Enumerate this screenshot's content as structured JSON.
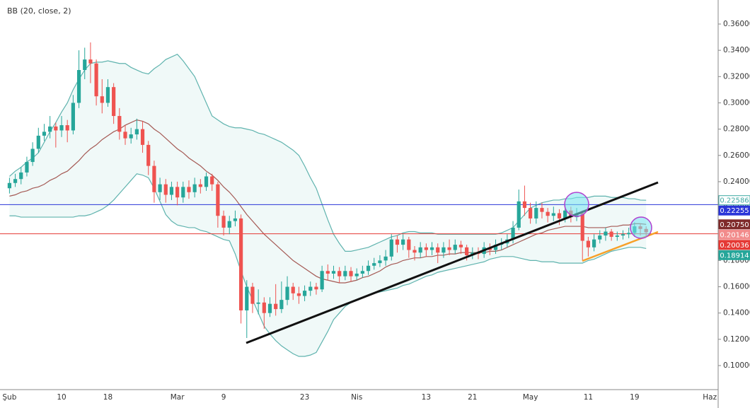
{
  "chart_data": {
    "type": "candlestick",
    "title": "BB (20, close, 2)",
    "categories": [
      "Şub",
      null,
      null,
      null,
      null,
      null,
      null,
      null,
      null,
      "10",
      null,
      null,
      null,
      null,
      null,
      null,
      null,
      "18",
      null,
      null,
      null,
      null,
      null,
      null,
      null,
      null,
      null,
      null,
      null,
      "Mar",
      null,
      null,
      null,
      null,
      null,
      null,
      null,
      "9",
      null,
      null,
      null,
      null,
      null,
      null,
      null,
      null,
      null,
      null,
      null,
      null,
      null,
      "23",
      null,
      null,
      null,
      null,
      null,
      null,
      null,
      null,
      "Nis",
      null,
      null,
      null,
      null,
      null,
      null,
      null,
      null,
      null,
      null,
      null,
      "13",
      null,
      null,
      null,
      null,
      null,
      null,
      null,
      "21",
      null,
      null,
      null,
      null,
      null,
      null,
      null,
      null,
      null,
      "May",
      null,
      null,
      null,
      null,
      null,
      null,
      null,
      null,
      null,
      "11",
      null,
      null,
      null,
      null,
      null,
      null,
      null,
      "19",
      null,
      null,
      null,
      null,
      null,
      null,
      null,
      null,
      null,
      null,
      null,
      null,
      "Haz",
      null
    ],
    "open": [
      0.235,
      0.239,
      0.242,
      0.247,
      0.255,
      0.265,
      0.275,
      0.278,
      0.282,
      0.279,
      0.283,
      0.279,
      0.3,
      0.325,
      0.333,
      0.33,
      0.305,
      0.3,
      0.312,
      0.29,
      0.278,
      0.273,
      0.276,
      0.28,
      0.268,
      0.252,
      0.232,
      0.238,
      0.23,
      0.236,
      0.228,
      0.236,
      0.232,
      0.238,
      0.236,
      0.244,
      0.238,
      0.214,
      0.205,
      0.21,
      0.212,
      0.142,
      0.16,
      0.147,
      0.148,
      0.14,
      0.147,
      0.143,
      0.15,
      0.16,
      0.155,
      0.153,
      0.157,
      0.16,
      0.158,
      0.172,
      0.17,
      0.172,
      0.168,
      0.172,
      0.168,
      0.17,
      0.172,
      0.176,
      0.178,
      0.18,
      0.183,
      0.196,
      0.192,
      0.196,
      0.188,
      0.186,
      0.19,
      0.188,
      0.19,
      0.186,
      0.19,
      0.188,
      0.192,
      0.19,
      0.184,
      0.186,
      0.185,
      0.19,
      0.188,
      0.192,
      0.193,
      0.196,
      0.205,
      0.225,
      0.22,
      0.212,
      0.22,
      0.217,
      0.214,
      0.216,
      0.212,
      0.218,
      0.213,
      0.216,
      0.195,
      0.19,
      0.196,
      0.199,
      0.202,
      0.198,
      0.199,
      0.2,
      0.201,
      0.206,
      0.204,
      null,
      null,
      null,
      null,
      null,
      null,
      null,
      null,
      null,
      null,
      null,
      null
    ],
    "high": [
      0.243,
      0.246,
      0.251,
      0.259,
      0.27,
      0.281,
      0.284,
      0.29,
      0.285,
      0.29,
      0.287,
      0.306,
      0.34,
      0.342,
      0.346,
      0.333,
      0.318,
      0.318,
      0.315,
      0.296,
      0.283,
      0.281,
      0.288,
      0.286,
      0.271,
      0.256,
      0.243,
      0.242,
      0.24,
      0.24,
      0.24,
      0.241,
      0.243,
      0.242,
      0.247,
      0.246,
      0.24,
      0.218,
      0.214,
      0.218,
      0.215,
      0.165,
      0.163,
      0.158,
      0.152,
      0.152,
      0.162,
      0.164,
      0.168,
      0.163,
      0.16,
      0.161,
      0.164,
      0.163,
      0.176,
      0.177,
      0.176,
      0.175,
      0.176,
      0.175,
      0.174,
      0.176,
      0.18,
      0.182,
      0.184,
      0.188,
      0.2,
      0.199,
      0.2,
      0.198,
      0.191,
      0.194,
      0.193,
      0.194,
      0.193,
      0.194,
      0.196,
      0.196,
      0.195,
      0.192,
      0.19,
      0.19,
      0.194,
      0.193,
      0.196,
      0.197,
      0.2,
      0.21,
      0.234,
      0.237,
      0.224,
      0.225,
      0.224,
      0.22,
      0.221,
      0.219,
      0.222,
      0.221,
      0.22,
      0.218,
      0.198,
      0.2,
      0.203,
      0.205,
      0.204,
      0.202,
      0.203,
      0.205,
      0.209,
      0.208,
      0.206,
      null,
      null,
      null,
      null,
      null,
      null,
      null,
      null,
      null,
      null,
      null,
      null
    ],
    "low": [
      0.231,
      0.236,
      0.238,
      0.244,
      0.252,
      0.262,
      0.271,
      0.273,
      0.266,
      0.274,
      0.27,
      0.276,
      0.296,
      0.318,
      0.315,
      0.298,
      0.292,
      0.297,
      0.284,
      0.272,
      0.268,
      0.269,
      0.272,
      0.262,
      0.245,
      0.224,
      0.226,
      0.224,
      0.226,
      0.222,
      0.224,
      0.227,
      0.228,
      0.231,
      0.233,
      0.233,
      0.205,
      0.199,
      0.2,
      0.206,
      0.132,
      0.121,
      0.14,
      0.139,
      0.128,
      0.137,
      0.138,
      0.14,
      0.146,
      0.15,
      0.147,
      0.149,
      0.153,
      0.154,
      0.156,
      0.165,
      0.166,
      0.163,
      0.165,
      0.164,
      0.165,
      0.167,
      0.169,
      0.173,
      0.175,
      0.176,
      0.18,
      0.186,
      0.188,
      0.182,
      0.18,
      0.182,
      0.183,
      0.184,
      0.178,
      0.182,
      0.184,
      0.185,
      0.185,
      0.18,
      0.181,
      0.181,
      0.182,
      0.184,
      0.185,
      0.188,
      0.19,
      0.193,
      0.203,
      0.214,
      0.208,
      0.208,
      0.212,
      0.209,
      0.21,
      0.207,
      0.209,
      0.209,
      0.21,
      0.18,
      0.183,
      0.187,
      0.193,
      0.195,
      0.195,
      0.195,
      0.196,
      0.197,
      0.198,
      0.199,
      0.199,
      null,
      null,
      null,
      null,
      null,
      null,
      null,
      null,
      null,
      null,
      null,
      null
    ],
    "close": [
      0.239,
      0.242,
      0.247,
      0.255,
      0.265,
      0.275,
      0.278,
      0.282,
      0.279,
      0.283,
      0.279,
      0.3,
      0.325,
      0.333,
      0.33,
      0.305,
      0.3,
      0.312,
      0.29,
      0.278,
      0.273,
      0.276,
      0.28,
      0.268,
      0.252,
      0.232,
      0.238,
      0.23,
      0.236,
      0.228,
      0.236,
      0.232,
      0.238,
      0.236,
      0.244,
      0.238,
      0.214,
      0.205,
      0.21,
      0.212,
      0.142,
      0.16,
      0.147,
      0.148,
      0.14,
      0.147,
      0.143,
      0.15,
      0.16,
      0.155,
      0.153,
      0.157,
      0.16,
      0.158,
      0.172,
      0.17,
      0.172,
      0.168,
      0.172,
      0.168,
      0.17,
      0.172,
      0.176,
      0.178,
      0.18,
      0.183,
      0.196,
      0.192,
      0.196,
      0.188,
      0.186,
      0.19,
      0.188,
      0.19,
      0.186,
      0.19,
      0.188,
      0.192,
      0.19,
      0.184,
      0.186,
      0.185,
      0.19,
      0.188,
      0.192,
      0.193,
      0.196,
      0.205,
      0.225,
      0.22,
      0.212,
      0.22,
      0.217,
      0.214,
      0.216,
      0.212,
      0.218,
      0.213,
      0.216,
      0.195,
      0.19,
      0.196,
      0.199,
      0.202,
      0.198,
      0.199,
      0.2,
      0.201,
      0.206,
      0.204,
      0.20146,
      null,
      null,
      null,
      null,
      null,
      null,
      null,
      null,
      null,
      null,
      null,
      null
    ],
    "up_color": "#26a69a",
    "down_color": "#ef5350",
    "overlays": [
      {
        "color": "#5fb3ae",
        "values": [
          0.244,
          0.248,
          0.251,
          0.255,
          0.258,
          0.262,
          0.27,
          0.278,
          0.285,
          0.293,
          0.3,
          0.31,
          0.318,
          0.325,
          0.33,
          0.331,
          0.331,
          0.332,
          0.331,
          0.33,
          0.33,
          0.327,
          0.325,
          0.323,
          0.322,
          0.326,
          0.329,
          0.333,
          0.335,
          0.337,
          0.332,
          0.326,
          0.32,
          0.31,
          0.3,
          0.29,
          0.287,
          0.284,
          0.282,
          0.281,
          0.281,
          0.28,
          0.279,
          0.277,
          0.276,
          0.274,
          0.272,
          0.27,
          0.267,
          0.264,
          0.26,
          0.252,
          0.243,
          0.235,
          0.223,
          0.211,
          0.2,
          0.193,
          0.187,
          0.187,
          0.188,
          0.189,
          0.19,
          0.192,
          0.194,
          0.196,
          0.198,
          0.199,
          0.201,
          0.202,
          0.202,
          0.201,
          0.201,
          0.201,
          0.2,
          0.2,
          0.2,
          0.2,
          0.2,
          0.2,
          0.2,
          0.2,
          0.2,
          0.2,
          0.2,
          0.201,
          0.203,
          0.205,
          0.21,
          0.215,
          0.22,
          0.222,
          0.224,
          0.225,
          0.226,
          0.226,
          0.227,
          0.227,
          0.228,
          0.228,
          0.228,
          0.229,
          0.229,
          0.229,
          0.228,
          0.228,
          0.228,
          0.227,
          0.227,
          0.226,
          0.22586,
          null,
          null,
          null,
          null,
          null,
          null,
          null,
          null,
          null,
          null,
          null,
          null
        ]
      },
      {
        "color": "#a55a55",
        "values": [
          0.229,
          0.23,
          0.232,
          0.233,
          0.235,
          0.236,
          0.238,
          0.241,
          0.243,
          0.246,
          0.248,
          0.252,
          0.256,
          0.261,
          0.265,
          0.268,
          0.272,
          0.275,
          0.278,
          0.28,
          0.283,
          0.285,
          0.287,
          0.286,
          0.284,
          0.28,
          0.277,
          0.273,
          0.269,
          0.265,
          0.262,
          0.258,
          0.255,
          0.252,
          0.248,
          0.245,
          0.241,
          0.236,
          0.232,
          0.227,
          0.221,
          0.215,
          0.21,
          0.205,
          0.2,
          0.196,
          0.192,
          0.188,
          0.184,
          0.18,
          0.177,
          0.174,
          0.171,
          0.168,
          0.166,
          0.165,
          0.164,
          0.163,
          0.163,
          0.164,
          0.165,
          0.167,
          0.168,
          0.17,
          0.172,
          0.175,
          0.177,
          0.178,
          0.18,
          0.181,
          0.182,
          0.182,
          0.183,
          0.183,
          0.184,
          0.184,
          0.185,
          0.185,
          0.186,
          0.186,
          0.186,
          0.186,
          0.186,
          0.187,
          0.187,
          0.188,
          0.19,
          0.192,
          0.194,
          0.196,
          0.198,
          0.2,
          0.201,
          0.203,
          0.204,
          0.205,
          0.206,
          0.206,
          0.206,
          0.206,
          0.205,
          0.205,
          0.205,
          0.205,
          0.206,
          0.206,
          0.207,
          0.207,
          0.208,
          0.208,
          0.2075,
          null,
          null,
          null,
          null,
          null,
          null,
          null,
          null,
          null,
          null,
          null,
          null
        ]
      },
      {
        "color": "#5fb3ae",
        "values": [
          0.214,
          0.214,
          0.213,
          0.213,
          0.213,
          0.213,
          0.213,
          0.213,
          0.213,
          0.213,
          0.213,
          0.213,
          0.214,
          0.214,
          0.215,
          0.217,
          0.219,
          0.222,
          0.226,
          0.231,
          0.236,
          0.241,
          0.246,
          0.245,
          0.243,
          0.235,
          0.225,
          0.215,
          0.21,
          0.207,
          0.206,
          0.205,
          0.205,
          0.203,
          0.202,
          0.2,
          0.198,
          0.196,
          0.195,
          0.185,
          0.172,
          0.16,
          0.15,
          0.14,
          0.13,
          0.124,
          0.119,
          0.115,
          0.112,
          0.109,
          0.107,
          0.107,
          0.108,
          0.11,
          0.118,
          0.126,
          0.135,
          0.14,
          0.145,
          0.148,
          0.15,
          0.152,
          0.153,
          0.155,
          0.156,
          0.157,
          0.158,
          0.159,
          0.161,
          0.162,
          0.164,
          0.166,
          0.168,
          0.169,
          0.171,
          0.172,
          0.173,
          0.174,
          0.175,
          0.176,
          0.177,
          0.178,
          0.179,
          0.181,
          0.182,
          0.183,
          0.183,
          0.183,
          0.182,
          0.181,
          0.18,
          0.18,
          0.179,
          0.179,
          0.179,
          0.178,
          0.178,
          0.178,
          0.178,
          0.178,
          0.18,
          0.181,
          0.183,
          0.185,
          0.187,
          0.188,
          0.189,
          0.19,
          0.19,
          0.19,
          0.18914,
          null,
          null,
          null,
          null,
          null,
          null,
          null,
          null,
          null,
          null,
          null,
          null
        ]
      }
    ],
    "band_fill": "rgba(38,166,154,0.07)",
    "hlines": [
      {
        "value": 0.22255,
        "label": "0.22255",
        "color": "#2a35d8"
      },
      {
        "value": 0.20036,
        "label": "0.20036",
        "color": "#e53935"
      }
    ],
    "tags": [
      {
        "value": 0.22586,
        "label": "0.22586",
        "color": "#3fa9a2",
        "style": "outline"
      },
      {
        "value": 0.2075,
        "label": "0.20750",
        "color": "#7f2a2a",
        "style": "solid"
      },
      {
        "value": 0.20146,
        "label": "0.20146",
        "color": "#f28b8b",
        "style": "solid"
      },
      {
        "value": 0.18914,
        "label": "0.18914",
        "color": "#26a69a",
        "style": "solid"
      }
    ],
    "ylim": [
      0.0817,
      0.3783
    ],
    "yticks": [
      {
        "value": 0.1,
        "label": "0.10000"
      },
      {
        "value": 0.12,
        "label": "0.12000"
      },
      {
        "value": 0.14,
        "label": "0.14000"
      },
      {
        "value": 0.16,
        "label": "0.16000"
      },
      {
        "value": 0.18,
        "label": "0.18000"
      },
      {
        "value": 0.2,
        "label": "0.20000"
      },
      {
        "value": 0.22,
        "label": "0.22000"
      },
      {
        "value": 0.24,
        "label": "0.24000"
      },
      {
        "value": 0.26,
        "label": "0.26000"
      },
      {
        "value": 0.28,
        "label": "0.28000"
      },
      {
        "value": 0.3,
        "label": "0.30000"
      },
      {
        "value": 0.32,
        "label": "0.32000"
      },
      {
        "value": 0.34,
        "label": "0.34000"
      },
      {
        "value": 0.36,
        "label": "0.36000"
      }
    ]
  }
}
